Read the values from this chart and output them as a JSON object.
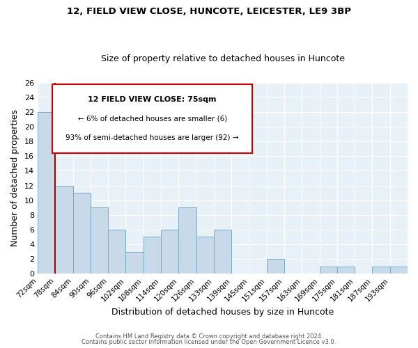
{
  "title": "12, FIELD VIEW CLOSE, HUNCOTE, LEICESTER, LE9 3BP",
  "subtitle": "Size of property relative to detached houses in Huncote",
  "xlabel": "Distribution of detached houses by size in Huncote",
  "ylabel": "Number of detached properties",
  "bin_labels": [
    "72sqm",
    "78sqm",
    "84sqm",
    "90sqm",
    "96sqm",
    "102sqm",
    "108sqm",
    "114sqm",
    "120sqm",
    "126sqm",
    "133sqm",
    "139sqm",
    "145sqm",
    "151sqm",
    "157sqm",
    "163sqm",
    "169sqm",
    "175sqm",
    "181sqm",
    "187sqm",
    "193sqm"
  ],
  "bar_heights": [
    22,
    12,
    11,
    9,
    6,
    3,
    5,
    6,
    9,
    5,
    6,
    0,
    0,
    2,
    0,
    0,
    1,
    1,
    0,
    1,
    1
  ],
  "bar_color": "#c8d9ea",
  "bar_edge_color": "#7aaac8",
  "background_color": "#e8f0f8",
  "annotation_text_line1": "12 FIELD VIEW CLOSE: 75sqm",
  "annotation_text_line2": "← 6% of detached houses are smaller (6)",
  "annotation_text_line3": "93% of semi-detached houses are larger (92) →",
  "annotation_box_color": "#ffffff",
  "annotation_box_edge": "#cc0000",
  "red_line_color": "#aa0000",
  "ylim": [
    0,
    26
  ],
  "yticks": [
    0,
    2,
    4,
    6,
    8,
    10,
    12,
    14,
    16,
    18,
    20,
    22,
    24,
    26
  ],
  "footer_line1": "Contains HM Land Registry data © Crown copyright and database right 2024.",
  "footer_line2": "Contains public sector information licensed under the Open Government Licence v3.0."
}
